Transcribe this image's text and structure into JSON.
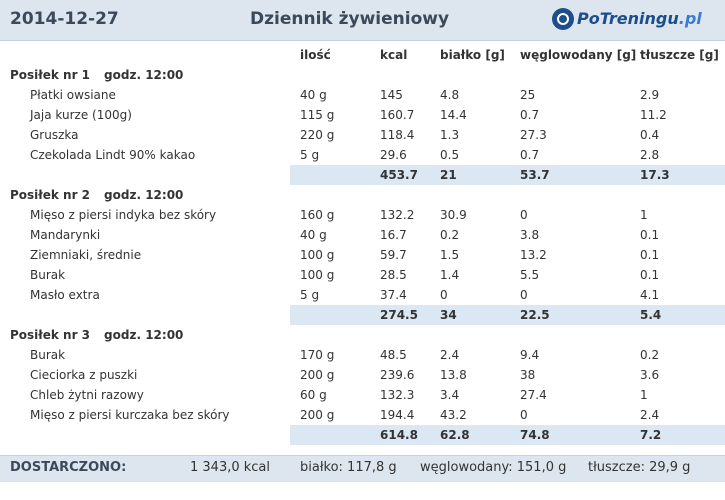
{
  "header": {
    "date": "2014-12-27",
    "title": "Dziennik żywieniowy",
    "logo_main": "PoTreningu",
    "logo_tld": ".pl"
  },
  "columns": {
    "qty": "ilość",
    "kcal": "kcal",
    "protein": "białko [g]",
    "carbs": "węglowodany [g]",
    "fat": "tłuszcze [g]"
  },
  "meals": [
    {
      "title": "Posiłek nr 1",
      "time": "godz. 12:00",
      "items": [
        {
          "name": "Płatki owsiane",
          "qty": "40 g",
          "kcal": "145",
          "protein": "4.8",
          "carbs": "25",
          "fat": "2.9"
        },
        {
          "name": "Jaja kurze (100g)",
          "qty": "115 g",
          "kcal": "160.7",
          "protein": "14.4",
          "carbs": "0.7",
          "fat": "11.2"
        },
        {
          "name": "Gruszka",
          "qty": "220 g",
          "kcal": "118.4",
          "protein": "1.3",
          "carbs": "27.3",
          "fat": "0.4"
        },
        {
          "name": "Czekolada Lindt 90% kakao",
          "qty": "5 g",
          "kcal": "29.6",
          "protein": "0.5",
          "carbs": "0.7",
          "fat": "2.8"
        }
      ],
      "total": {
        "kcal": "453.7",
        "protein": "21",
        "carbs": "53.7",
        "fat": "17.3"
      }
    },
    {
      "title": "Posiłek nr 2",
      "time": "godz. 12:00",
      "items": [
        {
          "name": "Mięso z piersi indyka bez skóry",
          "qty": "160 g",
          "kcal": "132.2",
          "protein": "30.9",
          "carbs": "0",
          "fat": "1"
        },
        {
          "name": "Mandarynki",
          "qty": "40 g",
          "kcal": "16.7",
          "protein": "0.2",
          "carbs": "3.8",
          "fat": "0.1"
        },
        {
          "name": "Ziemniaki, średnie",
          "qty": "100 g",
          "kcal": "59.7",
          "protein": "1.5",
          "carbs": "13.2",
          "fat": "0.1"
        },
        {
          "name": "Burak",
          "qty": "100 g",
          "kcal": "28.5",
          "protein": "1.4",
          "carbs": "5.5",
          "fat": "0.1"
        },
        {
          "name": "Masło extra",
          "qty": "5 g",
          "kcal": "37.4",
          "protein": "0",
          "carbs": "0",
          "fat": "4.1"
        }
      ],
      "total": {
        "kcal": "274.5",
        "protein": "34",
        "carbs": "22.5",
        "fat": "5.4"
      }
    },
    {
      "title": "Posiłek nr 3",
      "time": "godz. 12:00",
      "items": [
        {
          "name": "Burak",
          "qty": "170 g",
          "kcal": "48.5",
          "protein": "2.4",
          "carbs": "9.4",
          "fat": "0.2"
        },
        {
          "name": "Cieciorka z puszki",
          "qty": "200 g",
          "kcal": "239.6",
          "protein": "13.8",
          "carbs": "38",
          "fat": "3.6"
        },
        {
          "name": "Chleb żytni razowy",
          "qty": "60 g",
          "kcal": "132.3",
          "protein": "3.4",
          "carbs": "27.4",
          "fat": "1"
        },
        {
          "name": "Mięso z piersi kurczaka bez skóry",
          "qty": "200 g",
          "kcal": "194.4",
          "protein": "43.2",
          "carbs": "0",
          "fat": "2.4"
        }
      ],
      "total": {
        "kcal": "614.8",
        "protein": "62.8",
        "carbs": "74.8",
        "fat": "7.2"
      }
    }
  ],
  "footer": {
    "label": "DOSTARCZONO:",
    "kcal": "1 343,0 kcal",
    "protein": "białko: 117,8 g",
    "carbs": "węglowodany: 151,0 g",
    "fat": "tłuszcze: 29,9 g"
  },
  "colors": {
    "header_bg": "#dde6ee",
    "sum_bg": "#dbe7f3",
    "logo_blue": "#1e4d8c"
  }
}
